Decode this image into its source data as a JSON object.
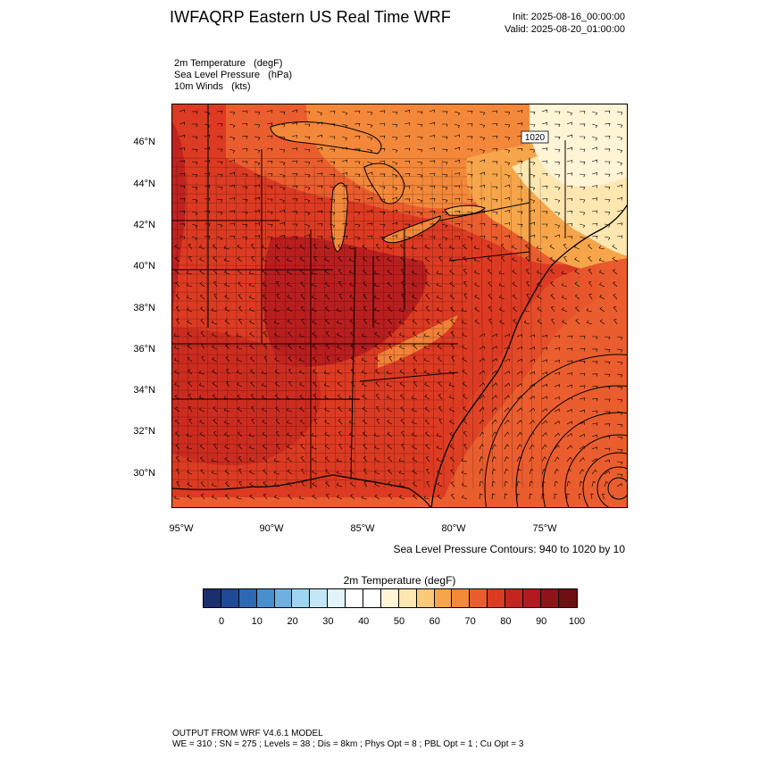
{
  "header": {
    "title": "IWFAQRP Eastern US Real Time WRF",
    "init": "Init: 2025-08-16_00:00:00",
    "valid": "Valid: 2025-08-20_01:00:00"
  },
  "fields": {
    "line1": "2m Temperature   (degF)",
    "line2": "Sea Level Pressure   (hPa)",
    "line3": "10m Winds   (kts)"
  },
  "map": {
    "lat_ticks": [
      "46°N",
      "44°N",
      "42°N",
      "40°N",
      "38°N",
      "36°N",
      "34°N",
      "32°N",
      "30°N"
    ],
    "lon_ticks": [
      "95°W",
      "90°W",
      "85°W",
      "80°W",
      "75°W"
    ],
    "isobar_label": "1020",
    "slp_caption": "Sea Level Pressure Contours: 940 to 1020 by 10",
    "colors": {
      "hot": "#b31a1f",
      "warm": "#dc3a22",
      "mid": "#ea5d2e",
      "orange": "#f4883a",
      "light_orange": "#f7a54a",
      "pale": "#fde6b0",
      "cool": "#ffffff"
    }
  },
  "colorbar": {
    "title": "2m Temperature  (degF)",
    "labels": [
      "0",
      "10",
      "20",
      "30",
      "40",
      "50",
      "60",
      "70",
      "80",
      "90",
      "100"
    ],
    "colors": [
      "#1b2f6e",
      "#1f4a96",
      "#2e69b3",
      "#4a8fcd",
      "#6fb0e0",
      "#9fd4f0",
      "#c3e6f6",
      "#e2f3fb",
      "#ffffff",
      "#ffffff",
      "#fff4d6",
      "#fde6b0",
      "#fbc97a",
      "#f7a54a",
      "#f4883a",
      "#ea5d2e",
      "#dc3a22",
      "#c4261f",
      "#b31a1f",
      "#8e1419",
      "#6e0f13"
    ]
  },
  "footer": {
    "line1": "OUTPUT FROM WRF V4.6.1 MODEL",
    "line2": "WE = 310 ; SN = 275 ; Levels = 38 ; Dis = 8km ; Phys Opt = 8 ; PBL Opt = 1 ; Cu Opt = 3"
  }
}
